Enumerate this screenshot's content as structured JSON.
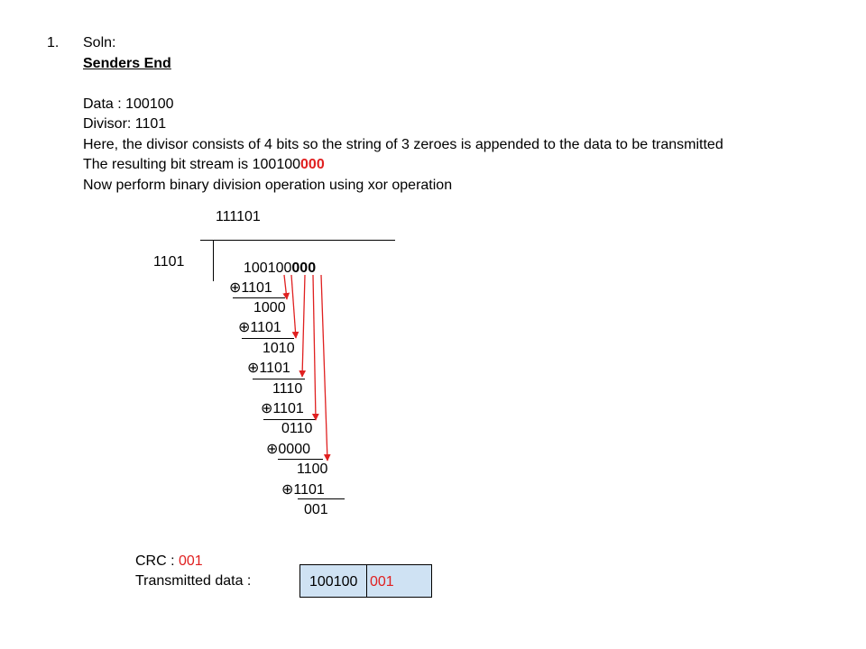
{
  "item_number": "1.",
  "soln_label": "Soln:",
  "section_heading": "Senders End",
  "data_line": "Data : 100100",
  "divisor_line": "Divisor: 1101",
  "explanation_line": "Here, the divisor consists of 4 bits so the string of 3 zeroes is appended to the data to be transmitted",
  "bitstream": {
    "prefix": "The resulting bit stream is 100100",
    "suffix": "000"
  },
  "operation_line": "Now perform binary division operation using xor operation",
  "division": {
    "quotient": "111101",
    "divisor": "1101",
    "dividend": {
      "data_part": "100100",
      "appended_part": "000"
    },
    "steps": [
      {
        "xor_operand": "⊕1101",
        "remainder": "1000"
      },
      {
        "xor_operand": "⊕1101",
        "remainder": "1010"
      },
      {
        "xor_operand": "⊕1101",
        "remainder": "1110"
      },
      {
        "xor_operand": "⊕1101",
        "remainder": "0110"
      },
      {
        "xor_operand": "⊕0000",
        "remainder": "1100"
      },
      {
        "xor_operand": "⊕1101",
        "remainder": "001"
      }
    ]
  },
  "crc": {
    "label": "CRC : ",
    "value": "001"
  },
  "transmitted": {
    "label": "Transmitted  data :",
    "data_part": "100100",
    "crc_part": "001"
  },
  "colors": {
    "highlight": "#e02020",
    "box_fill": "#cfe2f3",
    "text": "#000000"
  }
}
